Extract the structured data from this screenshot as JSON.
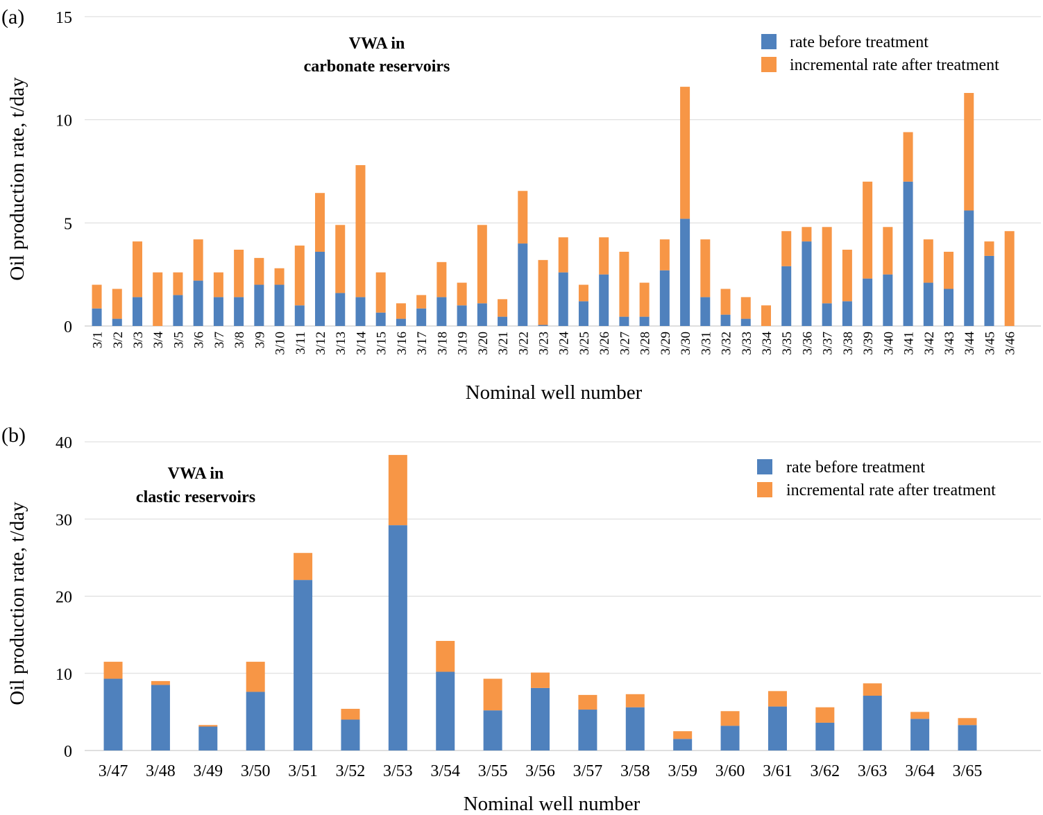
{
  "chart_data": [
    {
      "type": "bar",
      "stacked": true,
      "panel_label": "(a)",
      "annotation": [
        "VWA in",
        "carbonate reservoirs"
      ],
      "xlabel": "Nominal well number",
      "ylabel": "Oil production rate, t/day",
      "ylim": [
        0,
        15
      ],
      "yticks": [
        0,
        5,
        10,
        15
      ],
      "grid": true,
      "legend_position": "top-right",
      "categories": [
        "3/1",
        "3/2",
        "3/3",
        "3/4",
        "3/5",
        "3/6",
        "3/7",
        "3/8",
        "3/9",
        "3/10",
        "3/11",
        "3/12",
        "3/13",
        "3/14",
        "3/15",
        "3/16",
        "3/17",
        "3/18",
        "3/19",
        "3/20",
        "3/21",
        "3/22",
        "3/23",
        "3/24",
        "3/25",
        "3/26",
        "3/27",
        "3/28",
        "3/29",
        "3/30",
        "3/31",
        "3/32",
        "3/33",
        "3/34",
        "3/35",
        "3/36",
        "3/37",
        "3/38",
        "3/39",
        "3/40",
        "3/41",
        "3/42",
        "3/43",
        "3/44",
        "3/45",
        "3/46"
      ],
      "series": [
        {
          "name": "rate before treatment",
          "color": "#4f81bd",
          "values": [
            0.85,
            0.35,
            1.4,
            0,
            1.5,
            2.2,
            1.4,
            1.4,
            2.0,
            2.0,
            1.0,
            3.6,
            1.6,
            1.4,
            0.65,
            0.35,
            0.85,
            1.4,
            1.0,
            1.1,
            0.45,
            4.0,
            0.05,
            2.6,
            1.2,
            2.5,
            0.45,
            0.45,
            2.7,
            5.2,
            1.4,
            0.55,
            0.35,
            0,
            2.9,
            4.1,
            1.1,
            1.2,
            2.3,
            2.5,
            7.0,
            2.1,
            1.8,
            5.6,
            3.4,
            0
          ]
        },
        {
          "name": "incremental rate after treatment",
          "color": "#f79646",
          "values": [
            1.15,
            1.45,
            2.7,
            2.6,
            1.1,
            2.0,
            1.2,
            2.3,
            1.3,
            0.8,
            2.9,
            2.85,
            3.3,
            6.4,
            1.95,
            0.75,
            0.65,
            1.7,
            1.1,
            3.8,
            0.85,
            2.55,
            3.15,
            1.7,
            0.8,
            1.8,
            3.15,
            1.65,
            1.5,
            6.4,
            2.8,
            1.25,
            1.05,
            1.0,
            1.7,
            0.7,
            3.7,
            2.5,
            4.7,
            2.3,
            2.4,
            2.1,
            1.8,
            5.7,
            0.7,
            4.6
          ]
        }
      ]
    },
    {
      "type": "bar",
      "stacked": true,
      "panel_label": "(b)",
      "annotation": [
        "VWA in",
        "clastic reservoirs"
      ],
      "xlabel": "Nominal well number",
      "ylabel": "Oil production rate, t/day",
      "ylim": [
        0,
        40
      ],
      "yticks": [
        0,
        10,
        20,
        30,
        40
      ],
      "grid": true,
      "legend_position": "top-right",
      "categories": [
        "3/47",
        "3/48",
        "3/49",
        "3/50",
        "3/51",
        "3/52",
        "3/53",
        "3/54",
        "3/55",
        "3/56",
        "3/57",
        "3/58",
        "3/59",
        "3/60",
        "3/61",
        "3/62",
        "3/63",
        "3/64",
        "3/65"
      ],
      "series": [
        {
          "name": "rate before treatment",
          "color": "#4f81bd",
          "values": [
            9.3,
            8.5,
            3.1,
            7.6,
            22.1,
            4.0,
            29.2,
            10.2,
            5.2,
            8.1,
            5.3,
            5.6,
            1.5,
            3.2,
            5.7,
            3.6,
            7.1,
            4.1,
            3.3
          ]
        },
        {
          "name": "incremental rate after treatment",
          "color": "#f79646",
          "values": [
            2.2,
            0.5,
            0.2,
            3.9,
            3.5,
            1.4,
            9.1,
            4.0,
            4.1,
            2.0,
            1.9,
            1.7,
            1.0,
            1.9,
            2.0,
            2.0,
            1.6,
            0.9,
            0.9
          ]
        }
      ]
    }
  ]
}
